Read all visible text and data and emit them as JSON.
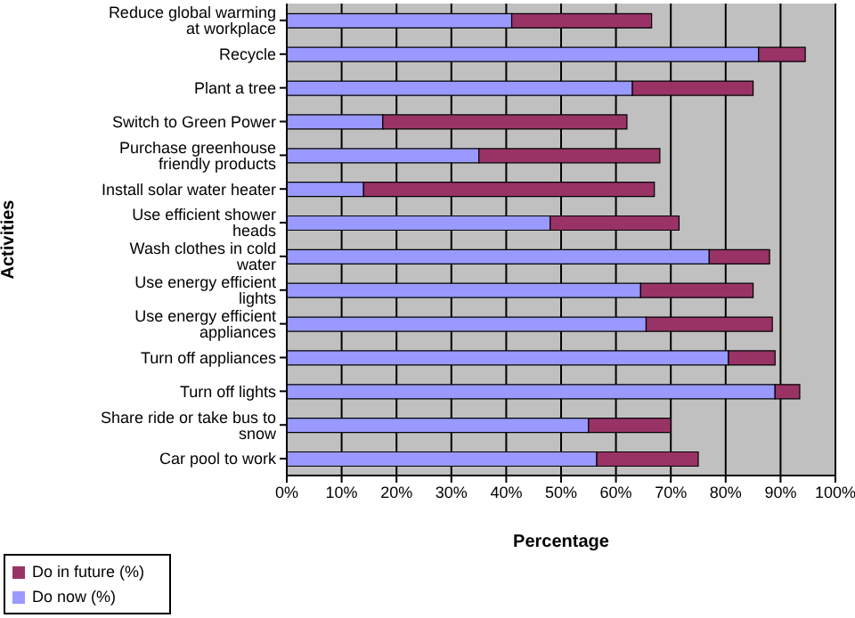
{
  "chart_data": {
    "type": "bar",
    "orientation": "horizontal",
    "stacked": true,
    "xlabel": "Percentage",
    "ylabel": "Activities",
    "categories": [
      "Reduce global warming at workplace",
      "Recycle",
      "Plant a tree",
      "Switch to Green Power",
      "Purchase greenhouse friendly products",
      "Install solar water heater",
      "Use efficient shower heads",
      "Wash clothes in cold water",
      "Use energy efficient lights",
      "Use energy efficient appliances",
      "Turn off appliances",
      "Turn off lights",
      "Share ride or take bus to snow",
      "Car pool to work"
    ],
    "series": [
      {
        "name": "Do now  (%)",
        "color": "#9999ff",
        "values": [
          41,
          86,
          63,
          17.5,
          35,
          14,
          48,
          77,
          64.5,
          65.5,
          80.5,
          89,
          55,
          56.5
        ]
      },
      {
        "name": "Do in future (%)",
        "color": "#993366",
        "values": [
          25.5,
          8.5,
          22,
          44.5,
          33,
          53,
          23.5,
          11,
          20.5,
          23,
          8.5,
          4.5,
          15,
          18.5
        ]
      }
    ],
    "xlim": [
      0,
      100
    ],
    "xticks": [
      {
        "value": 0,
        "label": "0%"
      },
      {
        "value": 10,
        "label": "10%"
      },
      {
        "value": 20,
        "label": "20%"
      },
      {
        "value": 30,
        "label": "30%"
      },
      {
        "value": 40,
        "label": "40%"
      },
      {
        "value": 50,
        "label": "50%"
      },
      {
        "value": 60,
        "label": "60%"
      },
      {
        "value": 70,
        "label": "70%"
      },
      {
        "value": 80,
        "label": "80%"
      },
      {
        "value": 90,
        "label": "90%"
      },
      {
        "value": 100,
        "label": "100%"
      }
    ],
    "grid": "x",
    "legend": "bottom left"
  }
}
